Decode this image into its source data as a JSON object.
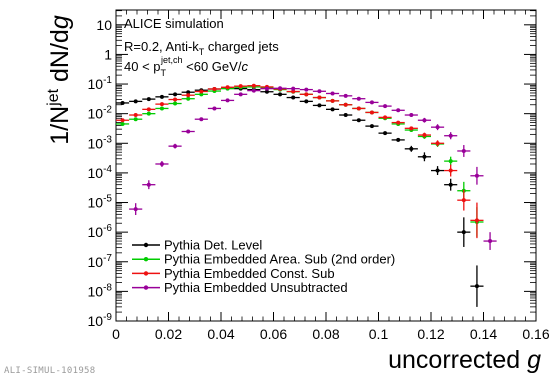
{
  "credit": "ALI-SIMUL-101958",
  "chart_data": {
    "type": "scatter",
    "title": "",
    "xlabel": "uncorrected g",
    "ylabel": "1/N^jet dN/dg",
    "xlim": [
      0,
      0.16
    ],
    "ylim_log10": [
      -9,
      1.5
    ],
    "log_y": true,
    "grid": false,
    "legend_position": "bottom-left",
    "x_tick_labels": [
      "0",
      "0.02",
      "0.04",
      "0.06",
      "0.08",
      "0.1",
      "0.12",
      "0.14",
      "0.16"
    ],
    "y_tick_labels": [
      "10",
      "1",
      "10^-1",
      "10^-2",
      "10^-3",
      "10^-4",
      "10^-5",
      "10^-6",
      "10^-7",
      "10^-8",
      "10^-9"
    ],
    "annotations": [
      "ALICE simulation",
      "R=0.2, Anti-k_T charged jets",
      "40 < p_T^jet,ch < 60 GeV/c"
    ],
    "series": [
      {
        "name": "Pythia Det. Level",
        "color": "#000000",
        "x": [
          0.0025,
          0.0075,
          0.0125,
          0.0175,
          0.0225,
          0.0275,
          0.0325,
          0.0375,
          0.0425,
          0.0475,
          0.0525,
          0.0575,
          0.0625,
          0.0675,
          0.0725,
          0.0775,
          0.0825,
          0.0875,
          0.0925,
          0.0975,
          0.1025,
          0.1075,
          0.1125,
          0.1175,
          0.1225,
          0.1275,
          0.1325,
          0.1375
        ],
        "y": [
          0.023,
          0.026,
          0.031,
          0.037,
          0.045,
          0.053,
          0.062,
          0.068,
          0.072,
          0.07,
          0.065,
          0.055,
          0.045,
          0.035,
          0.026,
          0.019,
          0.014,
          0.009,
          0.006,
          0.0038,
          0.0022,
          0.0013,
          0.00065,
          0.00035,
          0.00012,
          4e-05,
          1e-06,
          1.5e-08
        ],
        "y_err_log10": [
          0.03,
          0.03,
          0.03,
          0.03,
          0.03,
          0.03,
          0.03,
          0.03,
          0.03,
          0.03,
          0.03,
          0.03,
          0.03,
          0.03,
          0.03,
          0.03,
          0.03,
          0.03,
          0.03,
          0.04,
          0.05,
          0.06,
          0.1,
          0.15,
          0.15,
          0.2,
          0.5,
          0.7
        ]
      },
      {
        "name": "Pythia Embedded Area. Sub (2nd order)",
        "color": "#00cc00",
        "x": [
          0.0025,
          0.0075,
          0.0125,
          0.0175,
          0.0225,
          0.0275,
          0.0325,
          0.0375,
          0.0425,
          0.0475,
          0.0525,
          0.0575,
          0.0625,
          0.0675,
          0.0725,
          0.0775,
          0.0825,
          0.0875,
          0.0925,
          0.0975,
          0.1025,
          0.1075,
          0.1125,
          0.1175,
          0.1225,
          0.1275,
          0.1325,
          0.1375
        ],
        "y": [
          0.0045,
          0.0065,
          0.01,
          0.015,
          0.022,
          0.032,
          0.045,
          0.058,
          0.07,
          0.078,
          0.08,
          0.075,
          0.065,
          0.055,
          0.045,
          0.035,
          0.027,
          0.02,
          0.015,
          0.011,
          0.007,
          0.0045,
          0.0028,
          0.0017,
          0.00095,
          0.00025,
          2.5e-05,
          2.2e-06
        ],
        "y_err_log10": [
          0.03,
          0.03,
          0.03,
          0.03,
          0.03,
          0.03,
          0.03,
          0.03,
          0.03,
          0.03,
          0.03,
          0.03,
          0.03,
          0.03,
          0.03,
          0.03,
          0.03,
          0.03,
          0.03,
          0.03,
          0.04,
          0.05,
          0.06,
          0.08,
          0.1,
          0.15,
          0.3,
          0.5
        ]
      },
      {
        "name": "Pythia Embedded Const. Sub",
        "color": "#ee1111",
        "x": [
          0.0025,
          0.0075,
          0.0125,
          0.0175,
          0.0225,
          0.0275,
          0.0325,
          0.0375,
          0.0425,
          0.0475,
          0.0525,
          0.0575,
          0.0625,
          0.0675,
          0.0725,
          0.0775,
          0.0825,
          0.0875,
          0.0925,
          0.0975,
          0.1025,
          0.1075,
          0.1125,
          0.1175,
          0.1225,
          0.1275,
          0.1325,
          0.1375
        ],
        "y": [
          0.006,
          0.009,
          0.014,
          0.021,
          0.03,
          0.042,
          0.056,
          0.068,
          0.078,
          0.085,
          0.088,
          0.08,
          0.068,
          0.056,
          0.045,
          0.035,
          0.027,
          0.02,
          0.015,
          0.011,
          0.0075,
          0.005,
          0.0032,
          0.0019,
          0.001,
          0.00012,
          1.2e-05,
          2.5e-06
        ],
        "y_err_log10": [
          0.03,
          0.03,
          0.03,
          0.03,
          0.03,
          0.03,
          0.03,
          0.03,
          0.03,
          0.03,
          0.03,
          0.03,
          0.03,
          0.03,
          0.03,
          0.03,
          0.03,
          0.03,
          0.03,
          0.03,
          0.04,
          0.05,
          0.06,
          0.08,
          0.1,
          0.2,
          0.35,
          0.6
        ]
      },
      {
        "name": "Pythia Embedded Unsubtracted",
        "color": "#990099",
        "x": [
          0.0075,
          0.0125,
          0.0175,
          0.0225,
          0.0275,
          0.0325,
          0.0375,
          0.0425,
          0.0475,
          0.0525,
          0.0575,
          0.0625,
          0.0675,
          0.0725,
          0.0775,
          0.0825,
          0.0875,
          0.0925,
          0.0975,
          0.1025,
          0.1075,
          0.1125,
          0.1175,
          0.1225,
          0.1275,
          0.1325,
          0.1375,
          0.1425
        ],
        "y": [
          6e-06,
          4e-05,
          0.0002,
          0.0008,
          0.0025,
          0.0065,
          0.015,
          0.028,
          0.045,
          0.06,
          0.07,
          0.072,
          0.07,
          0.065,
          0.057,
          0.048,
          0.04,
          0.032,
          0.024,
          0.018,
          0.013,
          0.009,
          0.006,
          0.0035,
          0.0018,
          0.00055,
          8e-05,
          5e-07
        ],
        "y_err_log10": [
          0.2,
          0.15,
          0.1,
          0.08,
          0.05,
          0.04,
          0.03,
          0.03,
          0.03,
          0.03,
          0.03,
          0.03,
          0.03,
          0.03,
          0.03,
          0.03,
          0.03,
          0.03,
          0.03,
          0.04,
          0.05,
          0.06,
          0.08,
          0.1,
          0.12,
          0.2,
          0.3,
          0.3
        ]
      }
    ]
  }
}
